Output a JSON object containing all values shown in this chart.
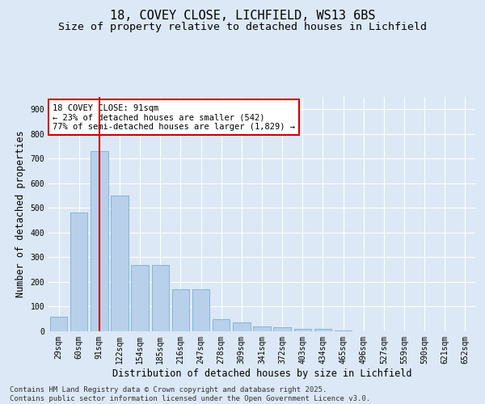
{
  "title1": "18, COVEY CLOSE, LICHFIELD, WS13 6BS",
  "title2": "Size of property relative to detached houses in Lichfield",
  "xlabel": "Distribution of detached houses by size in Lichfield",
  "ylabel": "Number of detached properties",
  "categories": [
    "29sqm",
    "60sqm",
    "91sqm",
    "122sqm",
    "154sqm",
    "185sqm",
    "216sqm",
    "247sqm",
    "278sqm",
    "309sqm",
    "341sqm",
    "372sqm",
    "403sqm",
    "434sqm",
    "465sqm",
    "496sqm",
    "527sqm",
    "559sqm",
    "590sqm",
    "621sqm",
    "652sqm"
  ],
  "values": [
    60,
    480,
    730,
    550,
    270,
    270,
    170,
    170,
    50,
    35,
    20,
    15,
    10,
    10,
    3,
    1,
    0,
    0,
    0,
    0,
    0
  ],
  "bar_color": "#b8d0ea",
  "bar_edge_color": "#7aafd4",
  "reference_line_x": 2,
  "reference_line_color": "#cc0000",
  "annotation_text": "18 COVEY CLOSE: 91sqm\n← 23% of detached houses are smaller (542)\n77% of semi-detached houses are larger (1,829) →",
  "annotation_box_color": "#ffffff",
  "annotation_box_edge": "#cc0000",
  "ylim": [
    0,
    950
  ],
  "yticks": [
    0,
    100,
    200,
    300,
    400,
    500,
    600,
    700,
    800,
    900
  ],
  "background_color": "#dce8f5",
  "grid_color": "#ffffff",
  "footer": "Contains HM Land Registry data © Crown copyright and database right 2025.\nContains public sector information licensed under the Open Government Licence v3.0.",
  "title_fontsize": 11,
  "subtitle_fontsize": 9.5,
  "axis_label_fontsize": 8.5,
  "tick_fontsize": 7,
  "annotation_fontsize": 7.5,
  "footer_fontsize": 6.5
}
